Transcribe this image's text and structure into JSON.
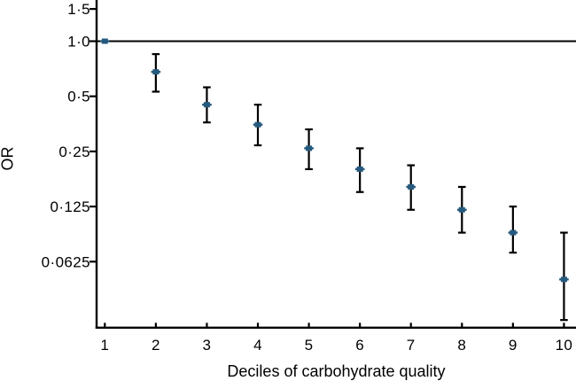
{
  "chart_data": {
    "type": "scatter",
    "subtype": "points-with-95ci-error-bars",
    "title": "",
    "xlabel": "Deciles of carbohydrate quality",
    "ylabel": "OR",
    "x_categories": [
      "1",
      "2",
      "3",
      "4",
      "5",
      "6",
      "7",
      "8",
      "9",
      "10"
    ],
    "y_scale": "log2",
    "y_ticks": [
      {
        "value": 1.5,
        "label": "1·5"
      },
      {
        "value": 1.0,
        "label": "1·0"
      },
      {
        "value": 0.5,
        "label": "0·5"
      },
      {
        "value": 0.25,
        "label": "0·25"
      },
      {
        "value": 0.125,
        "label": "0·125"
      },
      {
        "value": 0.0625,
        "label": "0·0625"
      }
    ],
    "reference_line": {
      "y": 1.0
    },
    "axis_color": "#000000",
    "grid": "off",
    "legend": "none",
    "series": [
      {
        "marker_color": "#255a7e",
        "error_bar_color": "#000000",
        "points": [
          {
            "x": 1,
            "or": 1.0,
            "ci_low": null,
            "ci_high": null
          },
          {
            "x": 2,
            "or": 0.68,
            "ci_low": 0.53,
            "ci_high": 0.85
          },
          {
            "x": 3,
            "or": 0.45,
            "ci_low": 0.36,
            "ci_high": 0.56
          },
          {
            "x": 4,
            "or": 0.35,
            "ci_low": 0.27,
            "ci_high": 0.45
          },
          {
            "x": 5,
            "or": 0.26,
            "ci_low": 0.2,
            "ci_high": 0.33
          },
          {
            "x": 6,
            "or": 0.2,
            "ci_low": 0.15,
            "ci_high": 0.26
          },
          {
            "x": 7,
            "or": 0.16,
            "ci_low": 0.12,
            "ci_high": 0.21
          },
          {
            "x": 8,
            "or": 0.12,
            "ci_low": 0.09,
            "ci_high": 0.16
          },
          {
            "x": 9,
            "or": 0.09,
            "ci_low": 0.07,
            "ci_high": 0.125
          },
          {
            "x": 10,
            "or": 0.05,
            "ci_low": 0.03,
            "ci_high": 0.09
          }
        ]
      }
    ]
  }
}
